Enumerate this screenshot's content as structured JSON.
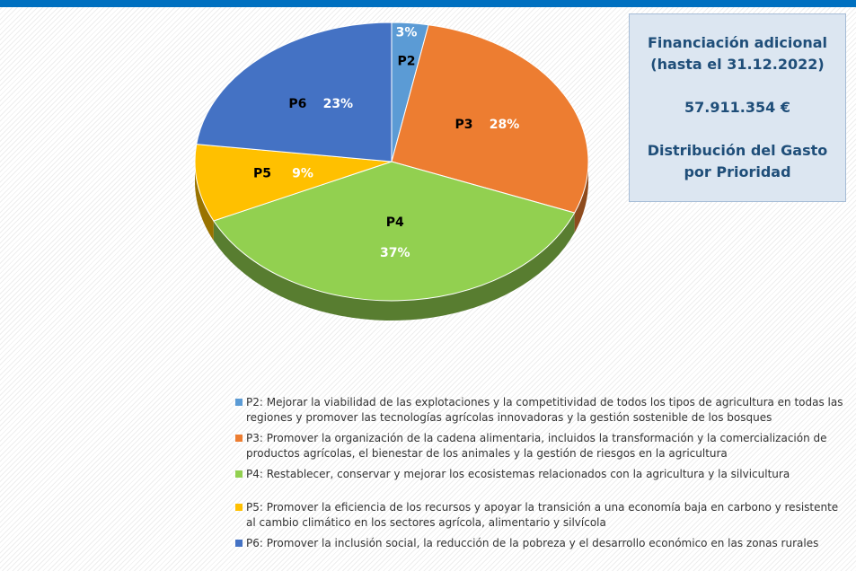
{
  "chart_data": {
    "type": "pie",
    "categories": [
      "P2",
      "P3",
      "P4",
      "P5",
      "P6"
    ],
    "values": [
      3,
      28,
      37,
      9,
      23
    ],
    "value_labels": [
      "3%",
      "28%",
      "37%",
      "9%",
      "23%"
    ],
    "colors": [
      "#5b9bd5",
      "#ed7d31",
      "#92d050",
      "#ffc000",
      "#4472c4"
    ],
    "legend": [
      "P2: Mejorar la viabilidad de las explotaciones y la competitividad de todos los tipos de agricultura en todas las regiones y promover las tecnologías agrícolas innovadoras y la gestión sostenible de los bosques",
      "P3: Promover la organización de la cadena alimentaria, incluidos la transformación y la comercialización de productos agrícolas, el bienestar de los animales y la gestión de riesgos en la agricultura",
      "P4: Restablecer, conservar y mejorar los ecosistemas relacionados con la agricultura y la silvicultura",
      "P5: Promover la eficiencia de los recursos y apoyar la transición a una economía baja en carbono y resistente al cambio climático en los sectores agrícola, alimentario y silvícola",
      "P6: Promover la inclusión social, la reducción de la pobreza y el desarrollo económico en las zonas rurales"
    ]
  },
  "box": {
    "title": "Financiación adicional (hasta el 31.12.2022)",
    "amount": "57.911.354 €",
    "subtitle": "Distribución del Gasto por Prioridad"
  }
}
